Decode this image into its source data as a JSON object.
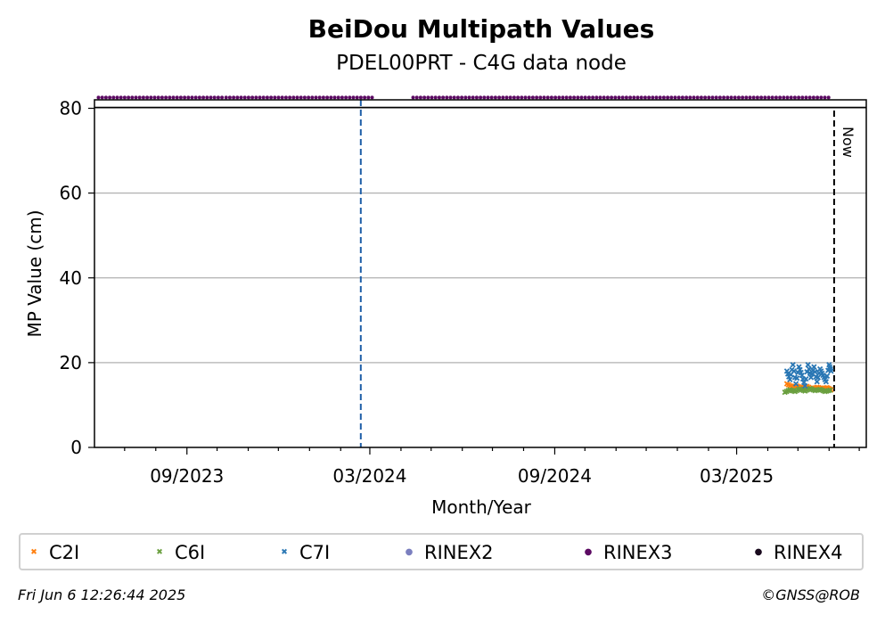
{
  "chart_data": {
    "type": "scatter",
    "title": "BeiDou Multipath Values",
    "subtitle": "PDEL00PRT - C4G data node",
    "xlabel": "Month/Year",
    "ylabel": "MP Value (cm)",
    "x_ticks": [
      "09/2023",
      "03/2024",
      "09/2024",
      "03/2025"
    ],
    "y_ticks": [
      0,
      20,
      40,
      60,
      80
    ],
    "xlim": [
      "2023-06-01",
      "2025-07-08"
    ],
    "ylim": [
      0,
      82
    ],
    "grid": "horizontal",
    "now_date": "2025-06-06",
    "now_label": "Now",
    "event_line_date": "2024-02-21",
    "rinex_band": {
      "y": 81.5,
      "label_series": "RINEX3",
      "segments": [
        [
          "2023-06-05",
          "2023-10-07"
        ],
        [
          "2023-10-10",
          "2024-03-05"
        ],
        [
          "2024-04-13",
          "2025-06-03"
        ]
      ]
    },
    "series": [
      {
        "name": "C2I",
        "color": "#ff7f0e",
        "marker": "x",
        "x": [
          "2025-04-20",
          "2025-04-25",
          "2025-04-30",
          "2025-05-05",
          "2025-05-10",
          "2025-05-15",
          "2025-05-20",
          "2025-05-25",
          "2025-05-30",
          "2025-06-03"
        ],
        "values": [
          15,
          14.3,
          14.5,
          14,
          14.4,
          13.8,
          14.2,
          13.9,
          14.1,
          13.6
        ]
      },
      {
        "name": "C6I",
        "color": "#6a9f3f",
        "marker": "x",
        "x": [
          "2025-04-18",
          "2025-04-23",
          "2025-04-28",
          "2025-05-03",
          "2025-05-08",
          "2025-05-13",
          "2025-05-18",
          "2025-05-23",
          "2025-05-28",
          "2025-06-02"
        ],
        "values": [
          13,
          13.6,
          13.2,
          13.8,
          13.3,
          13.9,
          13.4,
          13.7,
          13.2,
          13.5
        ]
      },
      {
        "name": "C7I",
        "color": "#2a77b4",
        "marker": "x",
        "x": [
          "2025-04-20",
          "2025-04-23",
          "2025-04-26",
          "2025-04-29",
          "2025-05-02",
          "2025-05-05",
          "2025-05-08",
          "2025-05-11",
          "2025-05-14",
          "2025-05-17",
          "2025-05-20",
          "2025-05-23",
          "2025-05-26",
          "2025-05-29",
          "2025-06-01",
          "2025-06-03"
        ],
        "values": [
          18,
          16,
          19.5,
          15,
          19,
          17,
          14.5,
          19.5,
          16.5,
          19,
          15.5,
          18.5,
          17,
          15.5,
          19.5,
          18
        ]
      }
    ],
    "legend": [
      "C2I",
      "C6I",
      "C7I",
      "RINEX2",
      "RINEX3",
      "RINEX4"
    ],
    "legend_colors": [
      "#ff7f0e",
      "#6a9f3f",
      "#2a77b4",
      "#7b7fbf",
      "#5c0a63",
      "#1a0a1e"
    ],
    "legend_markers": [
      "x",
      "x",
      "x",
      "dot",
      "dot",
      "dot"
    ],
    "legend_placement": "bottom"
  },
  "footer": {
    "timestamp": "Fri Jun  6 12:26:44 2025",
    "credit": "©GNSS@ROB"
  }
}
